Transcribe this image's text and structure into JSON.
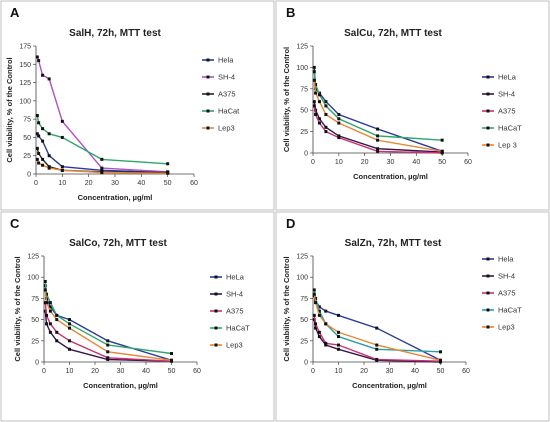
{
  "colors": {
    "HeLa": "#2a3b9a",
    "SH-4": "#3a1550",
    "A375": "#c8326e",
    "HaCaT": "#2fa66a",
    "Lep3": "#e8873a",
    "SalH_SH-4": "#b04fc0",
    "SalH_A375": "#2a2a2a",
    "SalZn_HaCaT": "#2c9fa3"
  },
  "chart_data": [
    {
      "panel_letter": "A",
      "type": "line",
      "title": "SalH, 72h, MTT test",
      "xlabel": "Concentration, µg/ml",
      "ylabel": "Cell viability, % of the Control",
      "xlim": [
        0,
        60
      ],
      "ylim": [
        0,
        175
      ],
      "xticks": [
        "0",
        "10",
        "20",
        "30",
        "40",
        "50",
        "60"
      ],
      "yticks": [
        "0",
        "25",
        "50",
        "75",
        "100",
        "125",
        "150",
        "175"
      ],
      "series": [
        {
          "name": "Hela",
          "color_key": "HeLa",
          "x": [
            0.5,
            1,
            2.5,
            5,
            10,
            25,
            50
          ],
          "y": [
            55,
            52,
            45,
            25,
            10,
            5,
            2
          ]
        },
        {
          "name": "SH-4",
          "color_key": "SalH_SH-4",
          "x": [
            0.5,
            1,
            2.5,
            5,
            10,
            25,
            50
          ],
          "y": [
            160,
            155,
            135,
            130,
            72,
            8,
            3
          ]
        },
        {
          "name": "A375",
          "color_key": "SalH_A375",
          "x": [
            0.5,
            1,
            2.5,
            5,
            10,
            25,
            50
          ],
          "y": [
            35,
            28,
            20,
            10,
            5,
            3,
            2
          ]
        },
        {
          "name": "HaCat",
          "color_key": "HaCaT",
          "x": [
            0.5,
            1,
            2.5,
            5,
            10,
            25,
            50
          ],
          "y": [
            80,
            70,
            62,
            55,
            50,
            20,
            14
          ]
        },
        {
          "name": "Lep3",
          "color_key": "Lep3",
          "x": [
            0.5,
            1,
            2.5,
            5,
            10,
            25,
            50
          ],
          "y": [
            20,
            15,
            12,
            8,
            5,
            2,
            1
          ]
        }
      ]
    },
    {
      "panel_letter": "B",
      "type": "line",
      "title": "SalCu, 72h, MTT test",
      "xlabel": "Concentration, µg/ml",
      "ylabel": "Cell viability, % of the Control",
      "xlim": [
        0,
        60
      ],
      "ylim": [
        0,
        125
      ],
      "xticks": [
        "0",
        "10",
        "20",
        "30",
        "40",
        "50",
        "60"
      ],
      "yticks": [
        "0",
        "25",
        "50",
        "75",
        "100",
        "125"
      ],
      "series": [
        {
          "name": "HeLa",
          "color_key": "HeLa",
          "x": [
            0.5,
            1,
            2.5,
            5,
            10,
            25,
            50
          ],
          "y": [
            100,
            75,
            70,
            60,
            45,
            28,
            2
          ]
        },
        {
          "name": "SH-4",
          "color_key": "SH-4",
          "x": [
            0.5,
            1,
            2.5,
            5,
            10,
            25,
            50
          ],
          "y": [
            60,
            50,
            40,
            30,
            20,
            5,
            1
          ]
        },
        {
          "name": "A375",
          "color_key": "A375",
          "x": [
            0.5,
            1,
            2.5,
            5,
            10,
            25,
            50
          ],
          "y": [
            55,
            45,
            35,
            25,
            18,
            2,
            0
          ]
        },
        {
          "name": "HaCaT",
          "color_key": "HaCaT",
          "x": [
            0.5,
            1,
            2.5,
            5,
            10,
            25,
            50
          ],
          "y": [
            95,
            80,
            68,
            55,
            40,
            20,
            15
          ]
        },
        {
          "name": "Lep 3",
          "color_key": "Lep3",
          "x": [
            0.5,
            1,
            2.5,
            5,
            10,
            25,
            50
          ],
          "y": [
            85,
            70,
            60,
            45,
            35,
            15,
            2
          ]
        }
      ]
    },
    {
      "panel_letter": "C",
      "type": "line",
      "title": "SalCo, 72h, MTT test",
      "xlabel": "Concentration, µg/ml",
      "ylabel": "Cell viability, % of the Control",
      "xlim": [
        0,
        60
      ],
      "ylim": [
        0,
        125
      ],
      "xticks": [
        "0",
        "10",
        "20",
        "30",
        "40",
        "50",
        "60"
      ],
      "yticks": [
        "0",
        "25",
        "50",
        "75",
        "100",
        "125"
      ],
      "series": [
        {
          "name": "HeLa",
          "color_key": "HeLa",
          "x": [
            0.5,
            1,
            2.5,
            5,
            10,
            25,
            50
          ],
          "y": [
            90,
            75,
            65,
            55,
            50,
            25,
            2
          ]
        },
        {
          "name": "SH-4",
          "color_key": "SH-4",
          "x": [
            0.5,
            1,
            2.5,
            5,
            10,
            25,
            50
          ],
          "y": [
            60,
            45,
            35,
            25,
            15,
            3,
            1
          ]
        },
        {
          "name": "A375",
          "color_key": "A375",
          "x": [
            0.5,
            1,
            2.5,
            5,
            10,
            25,
            50
          ],
          "y": [
            70,
            55,
            45,
            35,
            25,
            5,
            1
          ]
        },
        {
          "name": "HaCaT",
          "color_key": "HaCaT",
          "x": [
            0.5,
            1,
            2.5,
            5,
            10,
            25,
            50
          ],
          "y": [
            95,
            80,
            70,
            55,
            45,
            20,
            10
          ]
        },
        {
          "name": "Lep3",
          "color_key": "Lep3",
          "x": [
            0.5,
            1,
            2.5,
            5,
            10,
            25,
            50
          ],
          "y": [
            85,
            70,
            60,
            50,
            40,
            12,
            2
          ]
        }
      ]
    },
    {
      "panel_letter": "D",
      "type": "line",
      "title": "SalZn, 72h, MTT test",
      "xlabel": "Concentration, µg/ml",
      "ylabel": "Cell viability, % of the Control",
      "xlim": [
        0,
        60
      ],
      "ylim": [
        0,
        125
      ],
      "xticks": [
        "0",
        "10",
        "20",
        "30",
        "40",
        "50",
        "60"
      ],
      "yticks": [
        "0",
        "25",
        "50",
        "75",
        "100",
        "125"
      ],
      "series": [
        {
          "name": "Hela",
          "color_key": "HeLa",
          "x": [
            0.5,
            1,
            2.5,
            5,
            10,
            25,
            50
          ],
          "y": [
            78,
            72,
            65,
            60,
            55,
            40,
            2
          ]
        },
        {
          "name": "SH-4",
          "color_key": "SH-4",
          "x": [
            0.5,
            1,
            2.5,
            5,
            10,
            25,
            50
          ],
          "y": [
            50,
            40,
            30,
            20,
            15,
            2,
            0
          ]
        },
        {
          "name": "A375",
          "color_key": "A375",
          "x": [
            0.5,
            1,
            2.5,
            5,
            10,
            25,
            50
          ],
          "y": [
            55,
            45,
            35,
            22,
            20,
            3,
            1
          ]
        },
        {
          "name": "HaCaT",
          "color_key": "SalZn_HaCaT",
          "x": [
            0.5,
            1,
            2.5,
            5,
            10,
            25,
            50
          ],
          "y": [
            85,
            75,
            60,
            45,
            30,
            15,
            12
          ]
        },
        {
          "name": "Lep3",
          "color_key": "Lep3",
          "x": [
            0.5,
            1,
            2.5,
            5,
            10,
            25,
            50
          ],
          "y": [
            80,
            70,
            55,
            45,
            35,
            20,
            2
          ]
        }
      ]
    }
  ]
}
